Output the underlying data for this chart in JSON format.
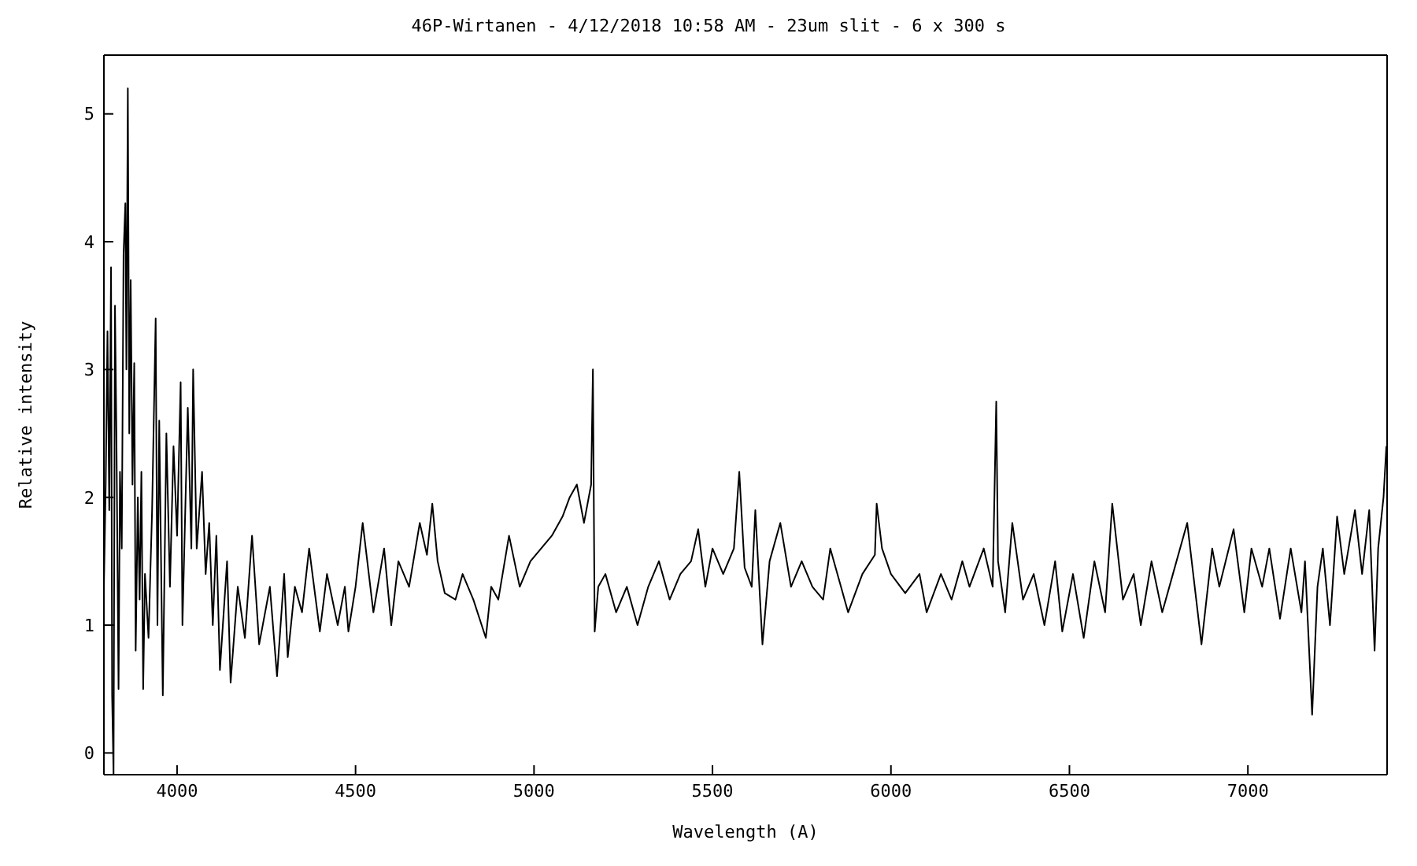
{
  "chart_data": {
    "type": "line",
    "title": "46P-Wirtanen - 4/12/2018 10:58 AM - 23um slit - 6 x 300 s",
    "xlabel": "Wavelength (A)",
    "ylabel": "Relative intensity",
    "xlim": [
      3795,
      7390
    ],
    "xticks": [
      4000,
      4500,
      5000,
      5500,
      6000,
      6500,
      7000
    ],
    "ylim": [
      -0.17,
      5.46
    ],
    "yticks": [
      0,
      1,
      2,
      3,
      4,
      5
    ],
    "grid": false,
    "legend": false,
    "marker": "none",
    "line_style": "solid",
    "x": [
      3795,
      3800,
      3805,
      3810,
      3815,
      3818,
      3822,
      3826,
      3830,
      3836,
      3840,
      3845,
      3850,
      3855,
      3858,
      3862,
      3866,
      3870,
      3875,
      3880,
      3884,
      3890,
      3895,
      3900,
      3905,
      3910,
      3920,
      3930,
      3940,
      3945,
      3950,
      3960,
      3970,
      3980,
      3990,
      4000,
      4010,
      4015,
      4030,
      4040,
      4045,
      4055,
      4070,
      4080,
      4090,
      4100,
      4110,
      4120,
      4140,
      4150,
      4170,
      4190,
      4210,
      4230,
      4260,
      4280,
      4300,
      4310,
      4330,
      4350,
      4370,
      4400,
      4420,
      4450,
      4470,
      4480,
      4500,
      4520,
      4550,
      4580,
      4600,
      4620,
      4650,
      4680,
      4700,
      4715,
      4730,
      4750,
      4780,
      4800,
      4830,
      4865,
      4880,
      4900,
      4930,
      4960,
      4990,
      5020,
      5050,
      5080,
      5100,
      5120,
      5140,
      5160,
      5165,
      5170,
      5180,
      5200,
      5230,
      5260,
      5290,
      5320,
      5350,
      5380,
      5410,
      5440,
      5460,
      5480,
      5500,
      5530,
      5560,
      5575,
      5590,
      5610,
      5620,
      5640,
      5660,
      5690,
      5720,
      5750,
      5780,
      5810,
      5830,
      5860,
      5880,
      5920,
      5955,
      5960,
      5975,
      6000,
      6040,
      6080,
      6100,
      6140,
      6170,
      6200,
      6220,
      6260,
      6285,
      6295,
      6300,
      6320,
      6340,
      6370,
      6400,
      6430,
      6460,
      6480,
      6510,
      6540,
      6570,
      6600,
      6620,
      6650,
      6680,
      6700,
      6730,
      6760,
      6790,
      6830,
      6870,
      6900,
      6920,
      6960,
      6990,
      7010,
      7040,
      7060,
      7090,
      7120,
      7150,
      7160,
      7180,
      7195,
      7210,
      7230,
      7250,
      7270,
      7300,
      7320,
      7340,
      7355,
      7365,
      7380,
      7388
    ],
    "series": [
      {
        "color": "#000000",
        "values": [
          1.3,
          2.1,
          3.3,
          1.9,
          3.8,
          0.45,
          -0.17,
          3.5,
          2.5,
          0.5,
          2.2,
          1.6,
          3.9,
          4.3,
          3.0,
          5.2,
          2.5,
          3.7,
          2.1,
          3.05,
          0.8,
          2.0,
          1.2,
          2.2,
          0.5,
          1.4,
          0.9,
          1.9,
          3.4,
          1.0,
          2.6,
          0.45,
          2.5,
          1.3,
          2.4,
          1.7,
          2.9,
          1.0,
          2.7,
          1.6,
          3.0,
          1.6,
          2.2,
          1.4,
          1.8,
          1.0,
          1.7,
          0.65,
          1.5,
          0.55,
          1.3,
          0.9,
          1.7,
          0.85,
          1.3,
          0.6,
          1.4,
          0.75,
          1.3,
          1.1,
          1.6,
          0.95,
          1.4,
          1.0,
          1.3,
          0.95,
          1.3,
          1.8,
          1.1,
          1.6,
          1.0,
          1.5,
          1.3,
          1.8,
          1.55,
          1.95,
          1.5,
          1.25,
          1.2,
          1.4,
          1.2,
          0.9,
          1.3,
          1.2,
          1.7,
          1.3,
          1.5,
          1.6,
          1.7,
          1.85,
          2.0,
          2.1,
          1.8,
          2.1,
          3.0,
          0.95,
          1.3,
          1.4,
          1.1,
          1.3,
          1.0,
          1.3,
          1.5,
          1.2,
          1.4,
          1.5,
          1.75,
          1.3,
          1.6,
          1.4,
          1.6,
          2.2,
          1.45,
          1.3,
          1.9,
          0.85,
          1.5,
          1.8,
          1.3,
          1.5,
          1.3,
          1.2,
          1.6,
          1.3,
          1.1,
          1.4,
          1.55,
          1.95,
          1.6,
          1.4,
          1.25,
          1.4,
          1.1,
          1.4,
          1.2,
          1.5,
          1.3,
          1.6,
          1.3,
          2.75,
          1.5,
          1.1,
          1.8,
          1.2,
          1.4,
          1.0,
          1.5,
          0.95,
          1.4,
          0.9,
          1.5,
          1.1,
          1.95,
          1.2,
          1.4,
          1.0,
          1.5,
          1.1,
          1.4,
          1.8,
          0.85,
          1.6,
          1.3,
          1.75,
          1.1,
          1.6,
          1.3,
          1.6,
          1.05,
          1.6,
          1.1,
          1.5,
          0.3,
          1.3,
          1.6,
          1.0,
          1.85,
          1.4,
          1.9,
          1.4,
          1.9,
          0.8,
          1.6,
          2.0,
          2.4
        ]
      }
    ]
  }
}
